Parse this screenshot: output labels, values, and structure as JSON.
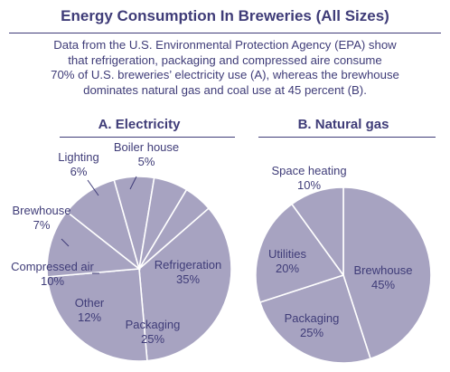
{
  "title": "Energy Consumption In Breweries (All Sizes)",
  "subtitle_lines": [
    "Data from the U.S. Environmental Protection Agency (EPA) show",
    "that refrigeration, packaging and compressed aire consume",
    "70% of U.S. breweries’ electricity use (A), whereas the brewhouse",
    "dominates natural gas and coal use at 45 percent (B)."
  ],
  "colors": {
    "slice_fill": "#a7a3c1",
    "slice_stroke": "#ffffff",
    "text": "#3f3c78"
  },
  "chart_data": [
    {
      "type": "pie",
      "title": "A. Electricity",
      "slices": [
        {
          "label": "Refrigeration",
          "value": 35,
          "value_label": "35%"
        },
        {
          "label": "Packaging",
          "value": 25,
          "value_label": "25%"
        },
        {
          "label": "Other",
          "value": 12,
          "value_label": "12%"
        },
        {
          "label": "Compressed air",
          "value": 10,
          "value_label": "10%"
        },
        {
          "label": "Brewhouse",
          "value": 7,
          "value_label": "7%"
        },
        {
          "label": "Lighting",
          "value": 6,
          "value_label": "6%"
        },
        {
          "label": "Boiler house",
          "value": 5,
          "value_label": "5%"
        }
      ]
    },
    {
      "type": "pie",
      "title": "B. Natural gas",
      "slices": [
        {
          "label": "Brewhouse",
          "value": 45,
          "value_label": "45%"
        },
        {
          "label": "Packaging",
          "value": 25,
          "value_label": "25%"
        },
        {
          "label": "Utilities",
          "value": 20,
          "value_label": "20%"
        },
        {
          "label": "Space heating",
          "value": 10,
          "value_label": "10%"
        }
      ]
    }
  ]
}
